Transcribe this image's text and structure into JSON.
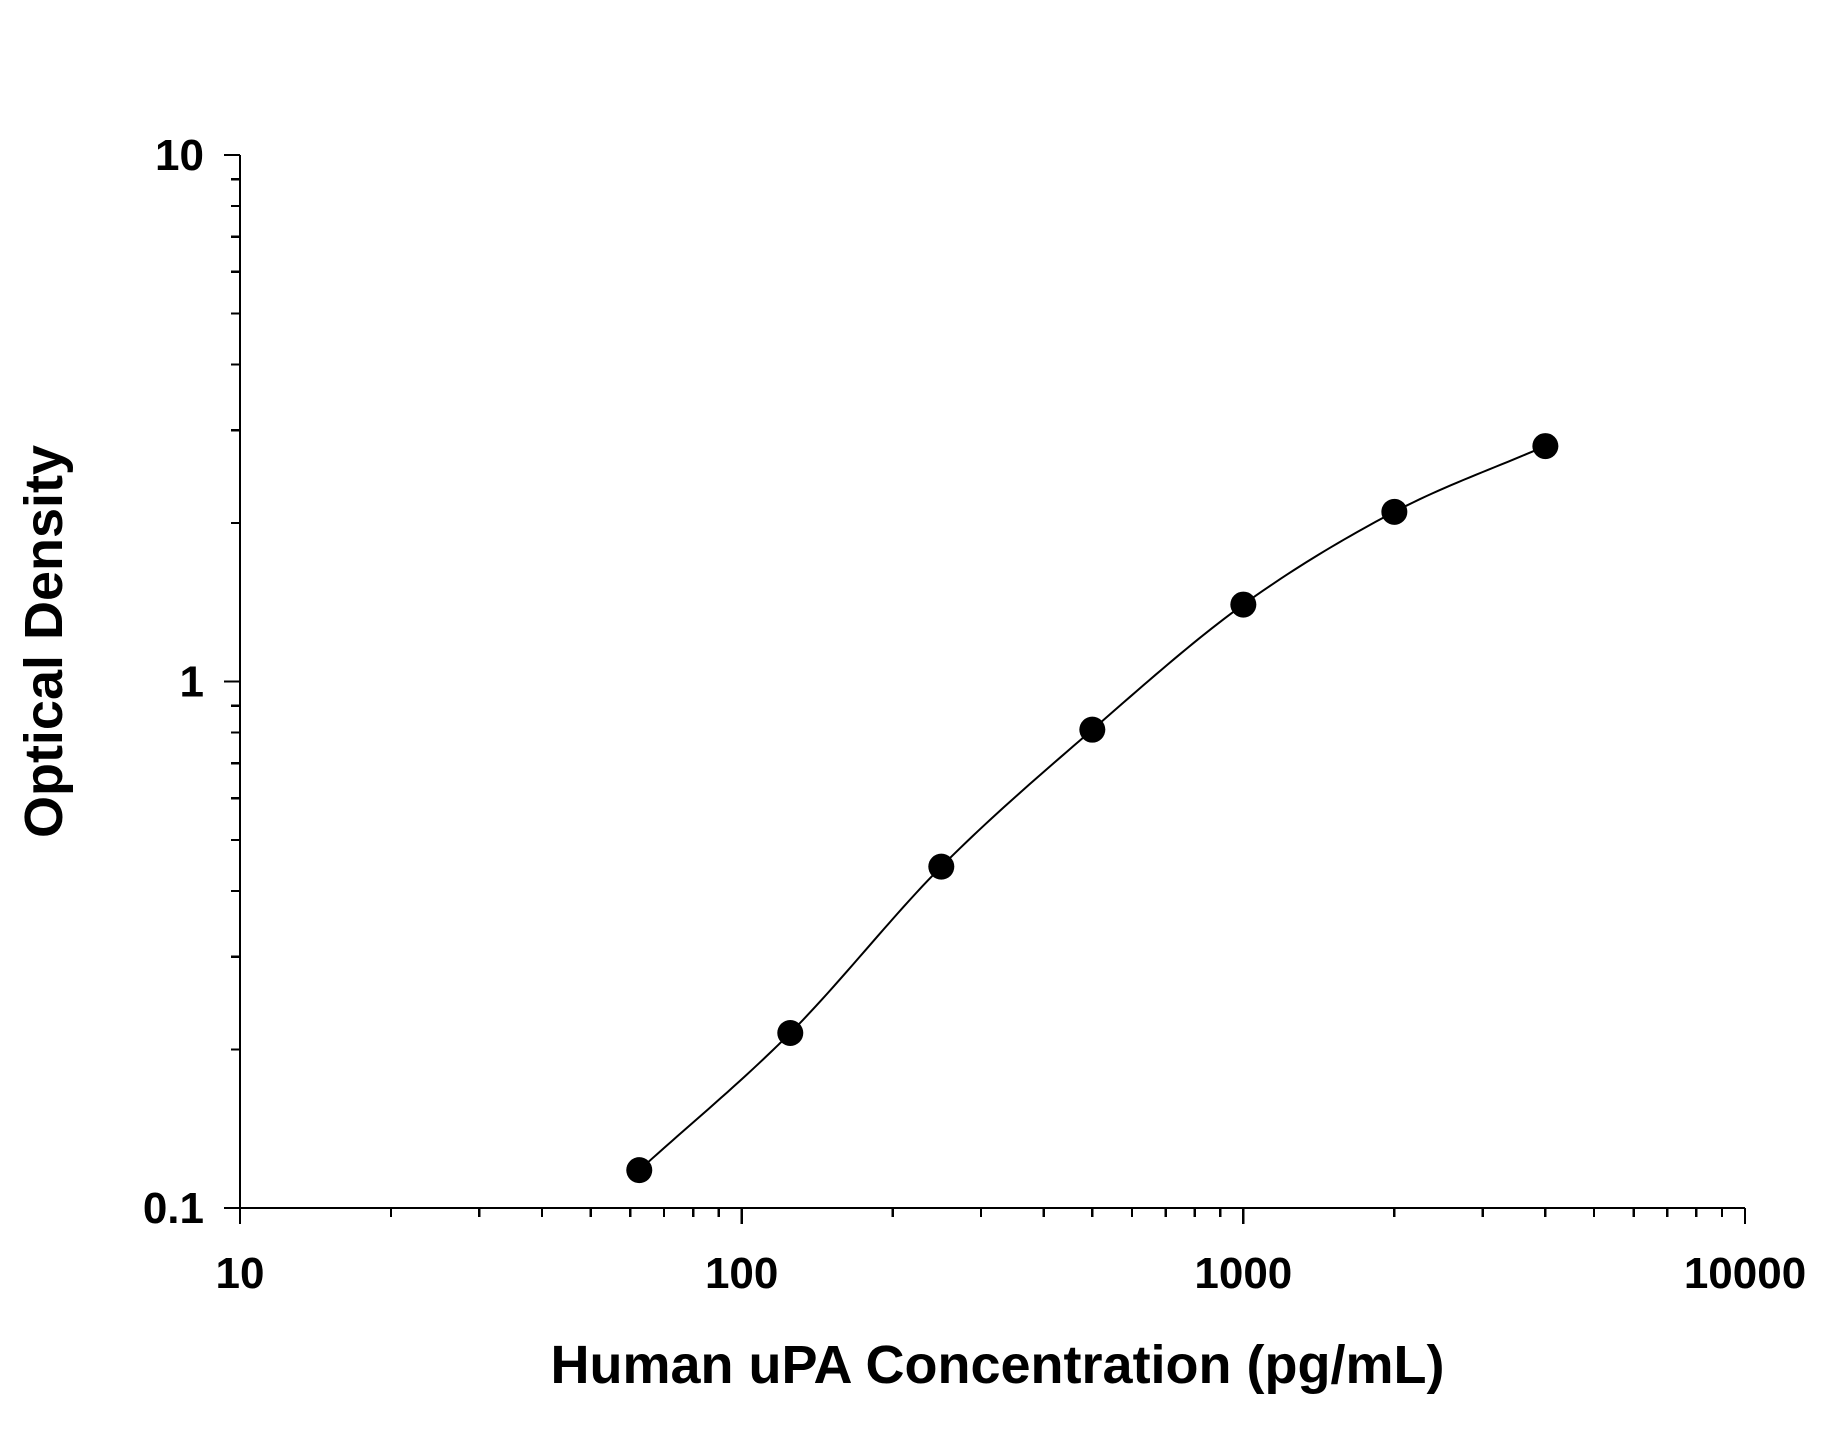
{
  "chart_data": {
    "type": "scatter",
    "title": "",
    "xlabel": "Human uPA Concentration (pg/mL)",
    "ylabel": "Optical Density",
    "x_scale": "log",
    "y_scale": "log",
    "xlim": [
      10,
      10000
    ],
    "ylim": [
      0.1,
      10
    ],
    "x_ticks": [
      "10",
      "100",
      "1000",
      "10000"
    ],
    "y_ticks": [
      "0.1",
      "1",
      "10"
    ],
    "grid": false,
    "legend": "none",
    "series": [
      {
        "x": [
          62.5,
          125,
          250,
          500,
          1000,
          2000,
          4000
        ],
        "y": [
          0.118,
          0.215,
          0.445,
          0.81,
          1.4,
          2.1,
          2.8
        ],
        "markers": "filled-circle",
        "fit_curve": true
      }
    ],
    "colors": {
      "points": "#000000",
      "curve": "#000000",
      "axes": "#000000"
    }
  }
}
